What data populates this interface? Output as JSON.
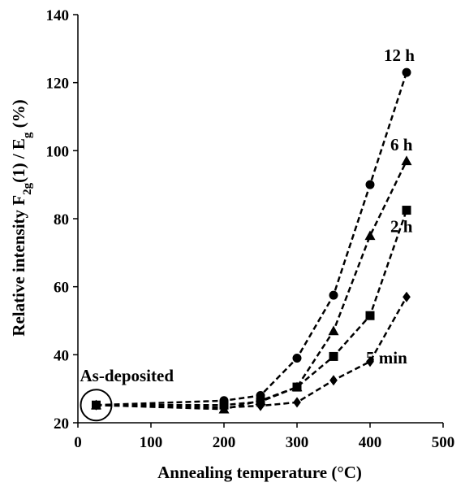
{
  "chart_data": {
    "type": "line",
    "xlabel": "Annealing temperature (°C)",
    "ylabel": {
      "pre": "Relative intensity F",
      "sub1": "2g",
      "mid": "(1) / E",
      "sub2": "g",
      "post": " (%)"
    },
    "xlim": [
      0,
      500
    ],
    "ylim": [
      20,
      140
    ],
    "x_ticks": [
      0,
      100,
      200,
      300,
      400,
      500
    ],
    "y_ticks": [
      20,
      40,
      60,
      80,
      100,
      120,
      140
    ],
    "grid": false,
    "legend": "none",
    "line_style": "dashed",
    "color": "#000000",
    "x": [
      25,
      200,
      250,
      300,
      350,
      400,
      450
    ],
    "series": [
      {
        "name": "12 h",
        "marker": "circle",
        "values": [
          25.2,
          26.5,
          28.0,
          39.0,
          57.5,
          90.0,
          123.0
        ]
      },
      {
        "name": "6 h",
        "marker": "triangle",
        "values": [
          25.2,
          24.0,
          26.5,
          30.5,
          47.0,
          75.0,
          97.0
        ]
      },
      {
        "name": "2 h",
        "marker": "square",
        "values": [
          25.2,
          25.2,
          26.2,
          30.5,
          39.5,
          51.5,
          82.5
        ]
      },
      {
        "name": "5 min",
        "marker": "diamond",
        "values": [
          25.2,
          24.5,
          25.0,
          26.0,
          32.5,
          38.0,
          57.0
        ]
      }
    ],
    "annotations": [
      {
        "text": "As-deposited",
        "x": 25,
        "y": 25.2,
        "marker": "circle-outline"
      }
    ]
  }
}
